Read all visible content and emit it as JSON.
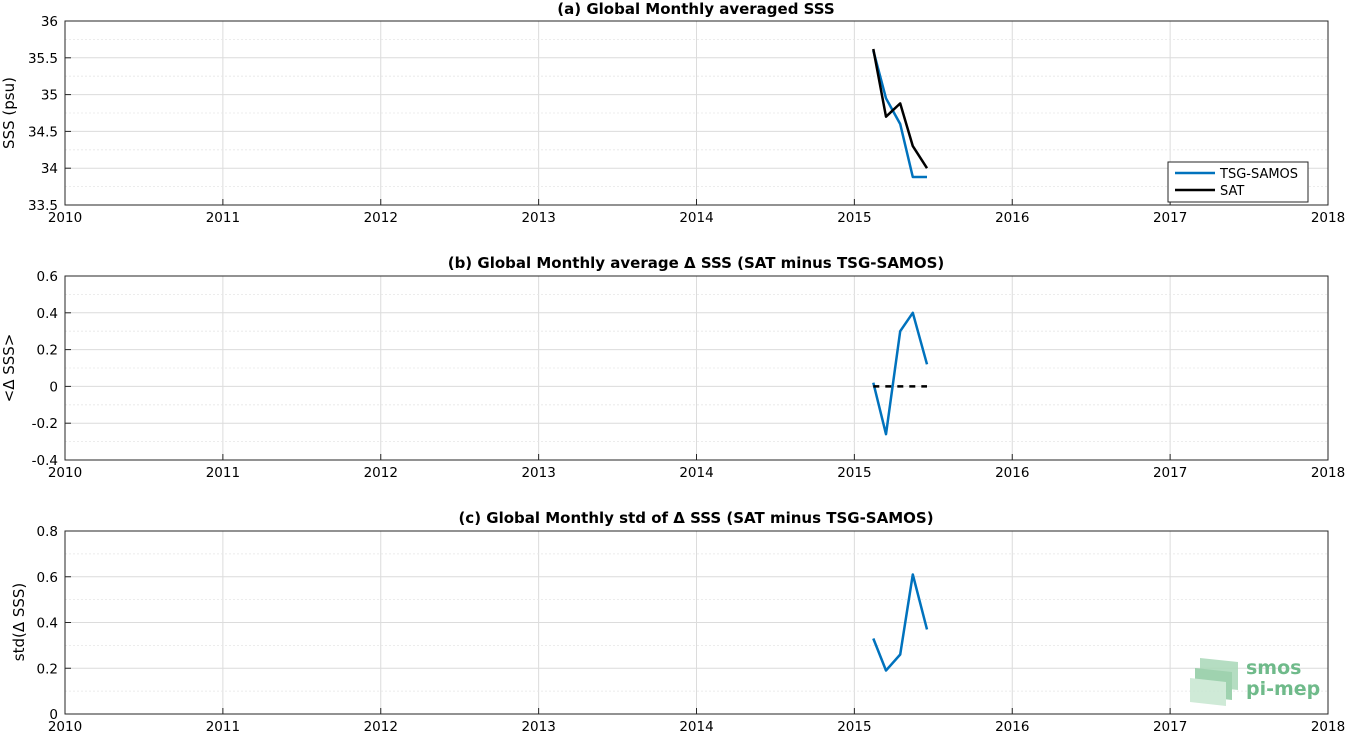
{
  "chart_data": [
    {
      "type": "line",
      "title": "(a) Global Monthly averaged SSS",
      "xlabel": "",
      "ylabel": "SSS (psu)",
      "xlim": [
        2010,
        2018
      ],
      "ylim": [
        33.5,
        36
      ],
      "x_ticks": [
        "2010",
        "2011",
        "2012",
        "2013",
        "2014",
        "2015",
        "2016",
        "2017",
        "2018"
      ],
      "y_ticks": [
        "33.5",
        "34",
        "34.5",
        "35",
        "35.5",
        "36"
      ],
      "y_tick_values": [
        33.5,
        34,
        34.5,
        35,
        35.5,
        36
      ],
      "grid": true,
      "legend": "bottom-right",
      "x": [
        2015.12,
        2015.2,
        2015.29,
        2015.37,
        2015.46
      ],
      "series": [
        {
          "name": "TSG-SAMOS",
          "color": "#0072BD",
          "dash": false,
          "values": [
            35.6,
            34.95,
            34.6,
            33.88,
            33.88
          ]
        },
        {
          "name": "SAT",
          "color": "#000000",
          "dash": false,
          "values": [
            35.62,
            34.7,
            34.88,
            34.3,
            34.0
          ]
        }
      ]
    },
    {
      "type": "line",
      "title": "(b) Global Monthly average Δ SSS (SAT minus TSG-SAMOS)",
      "xlabel": "",
      "ylabel": "<Δ SSS>",
      "xlim": [
        2010,
        2018
      ],
      "ylim": [
        -0.4,
        0.6
      ],
      "x_ticks": [
        "2010",
        "2011",
        "2012",
        "2013",
        "2014",
        "2015",
        "2016",
        "2017",
        "2018"
      ],
      "y_ticks": [
        "-0.4",
        "-0.2",
        "0",
        "0.2",
        "0.4",
        "0.6"
      ],
      "y_tick_values": [
        -0.4,
        -0.2,
        0,
        0.2,
        0.4,
        0.6
      ],
      "grid": true,
      "x": [
        2015.12,
        2015.2,
        2015.29,
        2015.37,
        2015.46
      ],
      "series": [
        {
          "color": "#0072BD",
          "dash": false,
          "values": [
            0.02,
            -0.26,
            0.3,
            0.4,
            0.12
          ]
        },
        {
          "color": "#000000",
          "dash": true,
          "values": [
            0,
            0,
            0,
            0,
            0
          ]
        }
      ]
    },
    {
      "type": "line",
      "title": "(c) Global Monthly std of Δ SSS (SAT minus TSG-SAMOS)",
      "xlabel": "",
      "ylabel": "std(Δ SSS)",
      "xlim": [
        2010,
        2018
      ],
      "ylim": [
        0,
        0.8
      ],
      "x_ticks": [
        "2010",
        "2011",
        "2012",
        "2013",
        "2014",
        "2015",
        "2016",
        "2017",
        "2018"
      ],
      "y_ticks": [
        "0",
        "0.2",
        "0.4",
        "0.6",
        "0.8"
      ],
      "y_tick_values": [
        0,
        0.2,
        0.4,
        0.6,
        0.8
      ],
      "grid": true,
      "x": [
        2015.12,
        2015.2,
        2015.29,
        2015.37,
        2015.46
      ],
      "series": [
        {
          "color": "#0072BD",
          "dash": false,
          "values": [
            0.33,
            0.19,
            0.26,
            0.61,
            0.37
          ]
        }
      ]
    }
  ],
  "logo": {
    "line1": "smos",
    "line2": "pi-mep",
    "color": "#6fba8a"
  }
}
